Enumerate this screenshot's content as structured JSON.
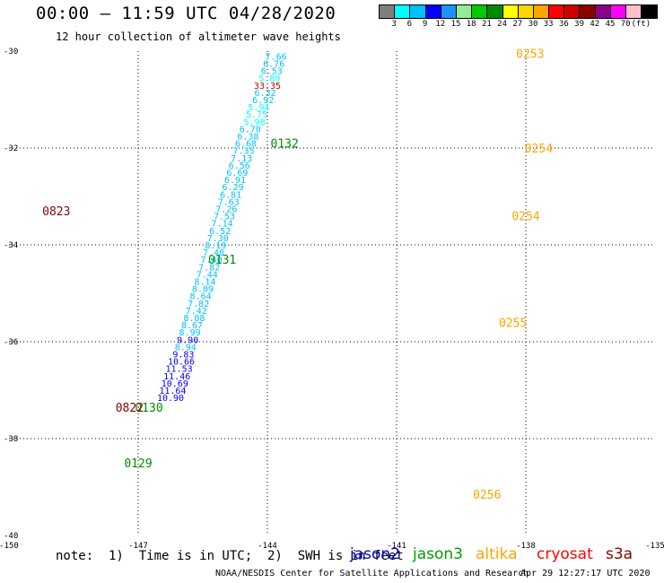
{
  "header": {
    "title": "00:00 – 11:59 UTC 04/28/2020",
    "subtitle": "12 hour collection of altimeter wave heights"
  },
  "colorbar": {
    "colors": [
      "#7f7f7f",
      "#00ffff",
      "#00bfff",
      "#0000ff",
      "#1e90ff",
      "#90ee90",
      "#00cd00",
      "#008b00",
      "#ffff00",
      "#ffd700",
      "#ffa500",
      "#ff0000",
      "#cd0000",
      "#8b0000",
      "#8b008b",
      "#ff00ff",
      "#ffc0cb",
      "#000000"
    ],
    "labels": [
      "3",
      "6",
      "9",
      "12",
      "15",
      "18",
      "21",
      "24",
      "27",
      "30",
      "33",
      "36",
      "39",
      "42",
      "45",
      "70",
      "(ft)"
    ]
  },
  "chart_data": {
    "type": "scatter",
    "title": "12 hour collection of altimeter wave heights",
    "xlim": [
      -150,
      -135
    ],
    "ylim": [
      -40,
      -30
    ],
    "x_ticks": [
      "-150",
      "-147",
      "-144",
      "-141",
      "-138",
      "-135"
    ],
    "y_ticks": [
      "-30",
      "-32",
      "-34",
      "-36",
      "-38",
      "-40"
    ],
    "grid": true,
    "tracks": [
      {
        "satellite": "jason3",
        "points": [
          {
            "x": -143.8,
            "y": -30.1,
            "v": "7.66",
            "c": "#00bfff"
          },
          {
            "x": -143.85,
            "y": -30.25,
            "v": "6.76",
            "c": "#00bfff"
          },
          {
            "x": -143.9,
            "y": -30.4,
            "v": "6.53",
            "c": "#00bfff"
          },
          {
            "x": -143.95,
            "y": -30.55,
            "v": "5.80",
            "c": "#00ffff"
          },
          {
            "x": -144.0,
            "y": -30.7,
            "v": "33.35",
            "c": "#cd0000"
          },
          {
            "x": -144.05,
            "y": -30.85,
            "v": "6.32",
            "c": "#00bfff"
          },
          {
            "x": -144.1,
            "y": -31.0,
            "v": "6.92",
            "c": "#00bfff"
          },
          {
            "x": -144.2,
            "y": -31.15,
            "v": "5.94",
            "c": "#00ffff"
          },
          {
            "x": -144.25,
            "y": -31.3,
            "v": "5.75",
            "c": "#00ffff"
          },
          {
            "x": -144.3,
            "y": -31.45,
            "v": "5.98",
            "c": "#00ffff"
          },
          {
            "x": -144.4,
            "y": -31.6,
            "v": "6.70",
            "c": "#00bfff"
          },
          {
            "x": -144.45,
            "y": -31.75,
            "v": "6.38",
            "c": "#00bfff"
          },
          {
            "x": -144.5,
            "y": -31.9,
            "v": "6.68",
            "c": "#00bfff"
          },
          {
            "x": -144.55,
            "y": -32.05,
            "v": "7.35",
            "c": "#00bfff"
          },
          {
            "x": -144.6,
            "y": -32.2,
            "v": "7.13",
            "c": "#00bfff"
          },
          {
            "x": -144.65,
            "y": -32.35,
            "v": "6.56",
            "c": "#00bfff"
          },
          {
            "x": -144.7,
            "y": -32.5,
            "v": "6.69",
            "c": "#00bfff"
          },
          {
            "x": -144.75,
            "y": -32.65,
            "v": "6.91",
            "c": "#00bfff"
          },
          {
            "x": -144.8,
            "y": -32.8,
            "v": "6.29",
            "c": "#00bfff"
          },
          {
            "x": -144.85,
            "y": -32.95,
            "v": "6.81",
            "c": "#00bfff"
          },
          {
            "x": -144.9,
            "y": -33.1,
            "v": "7.63",
            "c": "#00bfff"
          },
          {
            "x": -144.95,
            "y": -33.25,
            "v": "7.26",
            "c": "#00bfff"
          },
          {
            "x": -145.0,
            "y": -33.4,
            "v": "7.53",
            "c": "#00bfff"
          },
          {
            "x": -145.05,
            "y": -33.55,
            "v": "7.14",
            "c": "#00bfff"
          },
          {
            "x": -145.1,
            "y": -33.7,
            "v": "6.52",
            "c": "#00bfff"
          },
          {
            "x": -145.15,
            "y": -33.85,
            "v": "7.30",
            "c": "#00bfff"
          },
          {
            "x": -145.2,
            "y": -34.0,
            "v": "8.19",
            "c": "#00bfff"
          },
          {
            "x": -145.25,
            "y": -34.15,
            "v": "7.48",
            "c": "#00bfff"
          },
          {
            "x": -145.3,
            "y": -34.3,
            "v": "7.40",
            "c": "#00bfff"
          },
          {
            "x": -145.35,
            "y": -34.45,
            "v": "7.82",
            "c": "#00bfff"
          },
          {
            "x": -145.4,
            "y": -34.6,
            "v": "7.44",
            "c": "#00bfff"
          },
          {
            "x": -145.45,
            "y": -34.75,
            "v": "8.14",
            "c": "#00bfff"
          },
          {
            "x": -145.5,
            "y": -34.9,
            "v": "8.09",
            "c": "#00bfff"
          },
          {
            "x": -145.55,
            "y": -35.05,
            "v": "8.64",
            "c": "#00bfff"
          },
          {
            "x": -145.6,
            "y": -35.2,
            "v": "7.82",
            "c": "#00bfff"
          },
          {
            "x": -145.65,
            "y": -35.35,
            "v": "7.42",
            "c": "#00bfff"
          },
          {
            "x": -145.7,
            "y": -35.5,
            "v": "8.08",
            "c": "#00bfff"
          },
          {
            "x": -145.75,
            "y": -35.65,
            "v": "8.67",
            "c": "#00bfff"
          },
          {
            "x": -145.8,
            "y": -35.8,
            "v": "8.99",
            "c": "#00bfff"
          },
          {
            "x": -145.85,
            "y": -35.95,
            "v": "9.90",
            "c": "#0000ff"
          },
          {
            "x": -145.9,
            "y": -36.1,
            "v": "8.94",
            "c": "#00bfff"
          },
          {
            "x": -145.95,
            "y": -36.25,
            "v": "9.83",
            "c": "#0000ff"
          },
          {
            "x": -146.0,
            "y": -36.4,
            "v": "10.66",
            "c": "#0000ff"
          },
          {
            "x": -146.05,
            "y": -36.55,
            "v": "11.53",
            "c": "#0000ff"
          },
          {
            "x": -146.1,
            "y": -36.7,
            "v": "11.46",
            "c": "#0000ff"
          },
          {
            "x": -146.15,
            "y": -36.85,
            "v": "10.69",
            "c": "#0000ff"
          },
          {
            "x": -146.2,
            "y": -37.0,
            "v": "11.64",
            "c": "#0000ff"
          },
          {
            "x": -146.25,
            "y": -37.15,
            "v": "10.90",
            "c": "#0000ff"
          }
        ]
      }
    ],
    "time_labels": [
      {
        "text": "0132",
        "c": "#008b00"
      },
      {
        "text": "0131",
        "c": "#008b00"
      },
      {
        "text": "0130",
        "c": "#008b00"
      },
      {
        "text": "0129",
        "c": "#008b00"
      },
      {
        "text": "0823",
        "c": "#8b0000"
      },
      {
        "text": "0822",
        "c": "#8b0000"
      },
      {
        "text": "0253",
        "c": "#ffa500"
      },
      {
        "text": "0254",
        "c": "#ffa500"
      },
      {
        "text": "0254",
        "c": "#ffa500"
      },
      {
        "text": "0255",
        "c": "#ffa500"
      },
      {
        "text": "0256",
        "c": "#ffa500"
      }
    ]
  },
  "legend": {
    "note": "note:  1)  Time is in UTC;  2)  SWH is in feet",
    "satellites": [
      {
        "name": "jason2",
        "color": "#0000cd"
      },
      {
        "name": "jason3",
        "color": "#00a000"
      },
      {
        "name": "altika",
        "color": "#ffa500"
      },
      {
        "name": "cryosat",
        "color": "#ff0000"
      },
      {
        "name": "s3a",
        "color": "#8b0000"
      }
    ]
  },
  "footer": {
    "credit": "NOAA/NESDIS Center for Satellite Applications and Research",
    "timestamp": "Apr 29 12:27:17 UTC 2020"
  }
}
